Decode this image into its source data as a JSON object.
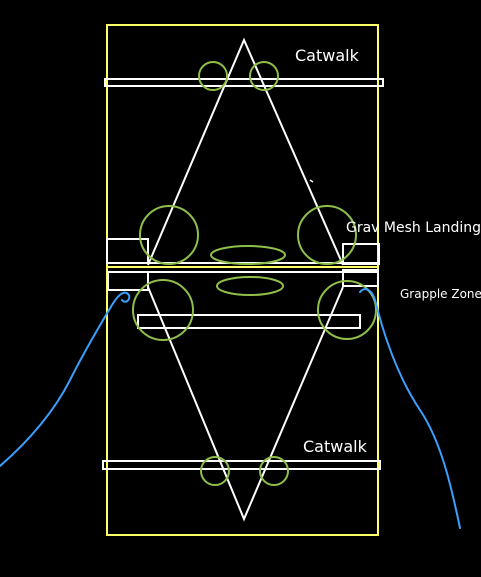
{
  "labels": {
    "catwalk_top": "Catwalk",
    "grav_mesh_landing": "Grav Mesh Landing",
    "grapple_zone": "Grapple Zone",
    "catwalk_bottom": "Catwalk"
  },
  "colors": {
    "background": "#000000",
    "field_outline": "#ffff66",
    "structure": "#ffffff",
    "zones": "#8fbf4a",
    "ropes": "#3aa0ff"
  }
}
